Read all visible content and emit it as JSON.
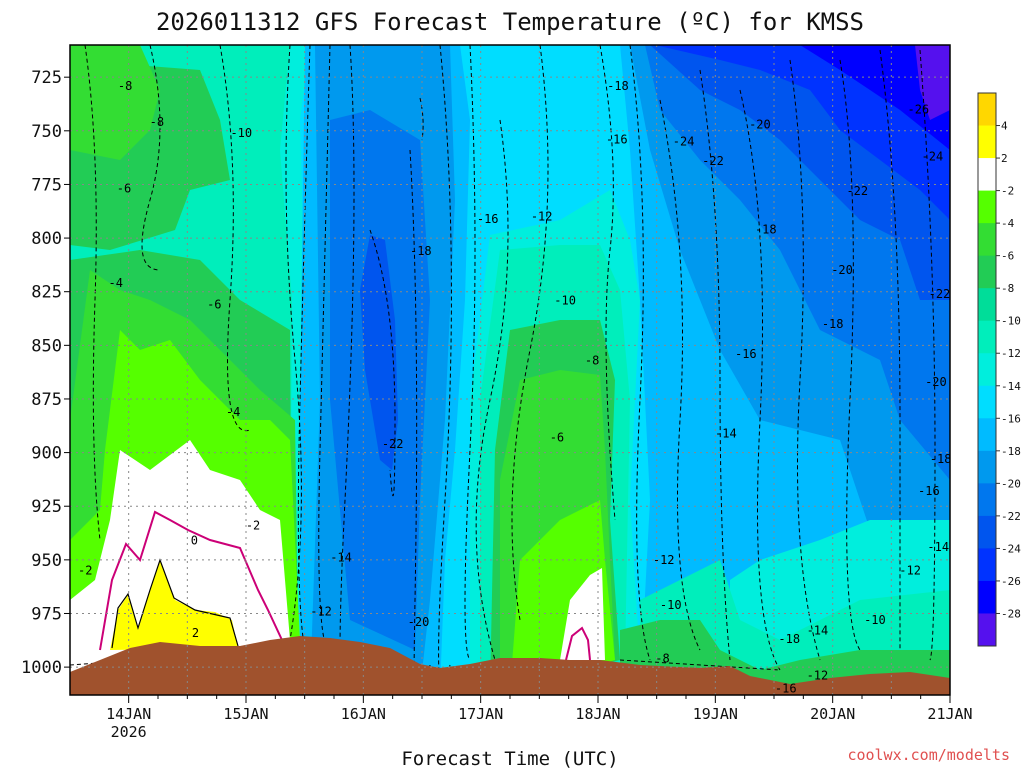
{
  "chart_data": {
    "type": "heatmap",
    "title": "2026011312 GFS Forecast Temperature (ºC) for KMSS",
    "xlabel": "Forecast Time (UTC)",
    "ylabel": "",
    "x_ticks": [
      "14JAN",
      "15JAN",
      "16JAN",
      "17JAN",
      "18JAN",
      "19JAN",
      "20JAN",
      "21JAN"
    ],
    "x_sub": "2026",
    "y_ticks": [
      725,
      750,
      775,
      800,
      825,
      850,
      875,
      900,
      925,
      950,
      975,
      1000
    ],
    "ylim": [
      1013,
      710
    ],
    "xlim_days": [
      13.5,
      21.0
    ],
    "y_unit": "hPa",
    "colorbar": {
      "labels": [
        "4",
        "2",
        "-2",
        "-4",
        "-6",
        "-8",
        "-10",
        "-12",
        "-14",
        "-16",
        "-18",
        "-20",
        "-22",
        "-24",
        "-26",
        "-28"
      ],
      "levels": [
        6,
        4,
        2,
        -2,
        -4,
        -6,
        -8,
        -10,
        -12,
        -14,
        -16,
        -18,
        -20,
        -22,
        -24,
        -26,
        -28,
        -30
      ],
      "colors": [
        "#ffd700",
        "#ffff00",
        "#ffffff",
        "#55ff00",
        "#33dd33",
        "#22cc55",
        "#00dd99",
        "#00eebb",
        "#00eedd",
        "#00ddff",
        "#00bbff",
        "#0099ee",
        "#0077ee",
        "#0055ee",
        "#0033ff",
        "#0000ff",
        "#5511ee"
      ]
    },
    "contour_labels": [
      {
        "t": "-8",
        "d": 13.97,
        "p": 729
      },
      {
        "t": "-8",
        "d": 14.24,
        "p": 746
      },
      {
        "t": "-10",
        "d": 14.96,
        "p": 751
      },
      {
        "t": "-6",
        "d": 13.96,
        "p": 777
      },
      {
        "t": "-4",
        "d": 13.89,
        "p": 821
      },
      {
        "t": "-6",
        "d": 14.73,
        "p": 831
      },
      {
        "t": "-4",
        "d": 14.89,
        "p": 881
      },
      {
        "t": "-2",
        "d": 15.06,
        "p": 934
      },
      {
        "t": "0",
        "d": 14.56,
        "p": 941
      },
      {
        "t": "2",
        "d": 14.57,
        "p": 984
      },
      {
        "t": "-2",
        "d": 13.63,
        "p": 955
      },
      {
        "t": "-14",
        "d": 15.81,
        "p": 949
      },
      {
        "t": "-12",
        "d": 15.64,
        "p": 974
      },
      {
        "t": "-20",
        "d": 16.47,
        "p": 979
      },
      {
        "t": "-22",
        "d": 16.25,
        "p": 896
      },
      {
        "t": "-18",
        "d": 16.49,
        "p": 806
      },
      {
        "t": "-16",
        "d": 17.06,
        "p": 791
      },
      {
        "t": "-12",
        "d": 17.52,
        "p": 790
      },
      {
        "t": "-10",
        "d": 17.72,
        "p": 829
      },
      {
        "t": "-8",
        "d": 17.95,
        "p": 857
      },
      {
        "t": "-6",
        "d": 17.65,
        "p": 893
      },
      {
        "t": "-18",
        "d": 18.17,
        "p": 729
      },
      {
        "t": "-16",
        "d": 18.16,
        "p": 754
      },
      {
        "t": "-12",
        "d": 18.56,
        "p": 950
      },
      {
        "t": "-10",
        "d": 18.62,
        "p": 971
      },
      {
        "t": "-8",
        "d": 18.55,
        "p": 996
      },
      {
        "t": "-24",
        "d": 18.73,
        "p": 755
      },
      {
        "t": "-22",
        "d": 18.98,
        "p": 764
      },
      {
        "t": "-20",
        "d": 19.38,
        "p": 747
      },
      {
        "t": "-18",
        "d": 19.43,
        "p": 796
      },
      {
        "t": "-16",
        "d": 19.26,
        "p": 854
      },
      {
        "t": "-14",
        "d": 19.09,
        "p": 891
      },
      {
        "t": "-22",
        "d": 20.21,
        "p": 778
      },
      {
        "t": "-20",
        "d": 20.08,
        "p": 815
      },
      {
        "t": "-18",
        "d": 20.0,
        "p": 840
      },
      {
        "t": "-26",
        "d": 20.73,
        "p": 740
      },
      {
        "t": "-24",
        "d": 20.85,
        "p": 762
      },
      {
        "t": "-22",
        "d": 20.91,
        "p": 826
      },
      {
        "t": "-20",
        "d": 20.88,
        "p": 867
      },
      {
        "t": "-18",
        "d": 20.92,
        "p": 903
      },
      {
        "t": "-16",
        "d": 20.82,
        "p": 918
      },
      {
        "t": "-14",
        "d": 20.9,
        "p": 944
      },
      {
        "t": "-12",
        "d": 20.66,
        "p": 955
      },
      {
        "t": "-10",
        "d": 20.36,
        "p": 978
      },
      {
        "t": "-14",
        "d": 19.87,
        "p": 983
      },
      {
        "t": "-18",
        "d": 19.63,
        "p": 987
      },
      {
        "t": "-12",
        "d": 19.87,
        "p": 1004
      },
      {
        "t": "-16",
        "d": 19.6,
        "p": 1010
      }
    ]
  },
  "credit": "coolwx.com/modelts"
}
